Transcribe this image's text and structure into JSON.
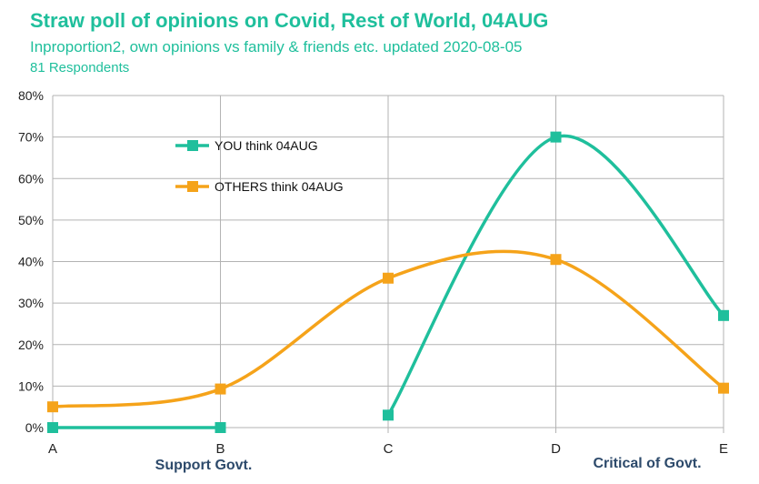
{
  "chart_data": {
    "type": "line",
    "title": "Straw poll of opinions on Covid, Rest of World, 04AUG",
    "subtitle": "Inproportion2, own opinions vs family & friends etc. updated 2020-08-05",
    "note": "81 Respondents",
    "categories": [
      "A",
      "B",
      "C",
      "D",
      "E"
    ],
    "x_annotations": {
      "left": "Support Govt.",
      "right": "Critical of Govt."
    },
    "yticks": [
      "0%",
      "10%",
      "20%",
      "30%",
      "40%",
      "50%",
      "60%",
      "70%",
      "80%"
    ],
    "ylim": [
      0,
      80
    ],
    "y_unit": "%",
    "grid": true,
    "legend_position": "inside-top-left",
    "smooth": true,
    "series": [
      {
        "name": "YOU think 04AUG",
        "color": "#1fbf9c",
        "values": [
          0,
          0,
          3,
          70,
          27
        ],
        "segments": [
          [
            0,
            1
          ],
          [
            2,
            4
          ]
        ]
      },
      {
        "name": "OTHERS think 04AUG",
        "color": "#f5a31a",
        "values": [
          5,
          9.3,
          36,
          40.5,
          9.5
        ],
        "segments": [
          [
            0,
            4
          ]
        ]
      }
    ]
  }
}
